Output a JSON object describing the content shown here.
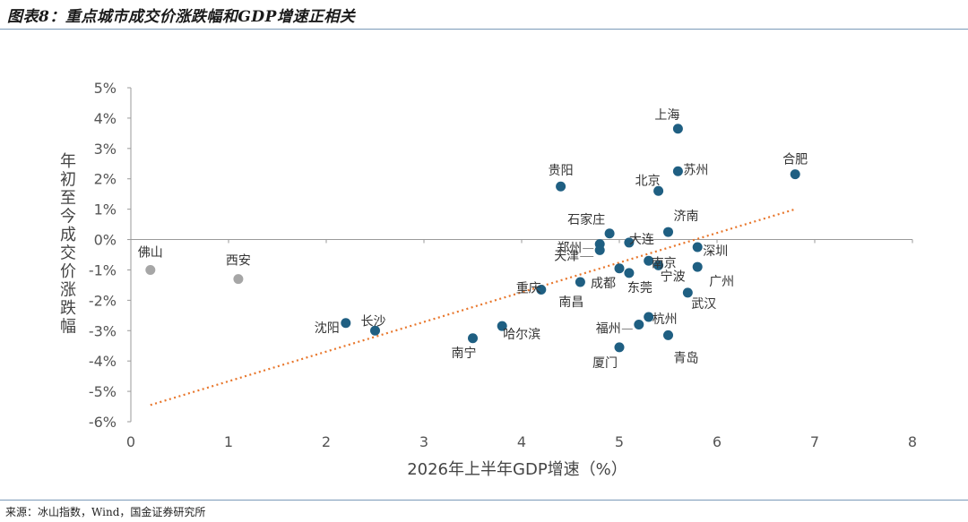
{
  "header": {
    "title": "图表8：重点城市成交价涨跌幅和GDP增速正相关"
  },
  "footer": {
    "source": "来源：冰山指数，Wind，国金证券研究所"
  },
  "chart_data": {
    "type": "scatter",
    "xlabel": "2026年上半年GDP增速（%）",
    "ylabel": "年初至今成交价涨跌幅",
    "xlim": [
      0,
      8
    ],
    "ylim": [
      -6,
      5
    ],
    "x_ticks": [
      "0",
      "1",
      "2",
      "3",
      "4",
      "5",
      "6",
      "7",
      "8"
    ],
    "y_ticks": [
      "-6%",
      "-5%",
      "-4%",
      "-3%",
      "-2%",
      "-1%",
      "0%",
      "1%",
      "2%",
      "3%",
      "4%",
      "5%"
    ],
    "colors": {
      "main": "#1f5f82",
      "grey": "#a6a6a6",
      "trend": "#e8762b"
    },
    "points": [
      {
        "name": "上海",
        "x": 5.6,
        "y": 3.65,
        "color": "main"
      },
      {
        "name": "合肥",
        "x": 6.8,
        "y": 2.15,
        "color": "main"
      },
      {
        "name": "苏州",
        "x": 5.6,
        "y": 2.25,
        "color": "main"
      },
      {
        "name": "北京",
        "x": 5.4,
        "y": 1.6,
        "color": "main"
      },
      {
        "name": "贵阳",
        "x": 4.4,
        "y": 1.75,
        "color": "main"
      },
      {
        "name": "济南",
        "x": 5.5,
        "y": 0.25,
        "color": "main"
      },
      {
        "name": "石家庄",
        "x": 4.9,
        "y": 0.2,
        "color": "main"
      },
      {
        "name": "大连",
        "x": 5.1,
        "y": -0.1,
        "color": "main"
      },
      {
        "name": "郑州",
        "x": 4.8,
        "y": -0.15,
        "color": "main"
      },
      {
        "name": "天津",
        "x": 4.8,
        "y": -0.35,
        "color": "main"
      },
      {
        "name": "深圳",
        "x": 5.8,
        "y": -0.25,
        "color": "main"
      },
      {
        "name": "南京",
        "x": 5.3,
        "y": -0.7,
        "color": "main"
      },
      {
        "name": "宁波",
        "x": 5.4,
        "y": -0.85,
        "color": "main"
      },
      {
        "name": "广州",
        "x": 5.8,
        "y": -0.9,
        "color": "main"
      },
      {
        "name": "东莞",
        "x": 5.1,
        "y": -1.1,
        "color": "main"
      },
      {
        "name": "成都",
        "x": 5.0,
        "y": -0.95,
        "color": "main"
      },
      {
        "name": "南昌",
        "x": 4.6,
        "y": -1.4,
        "color": "main"
      },
      {
        "name": "重庆",
        "x": 4.2,
        "y": -1.65,
        "color": "main"
      },
      {
        "name": "武汉",
        "x": 5.7,
        "y": -1.75,
        "color": "main"
      },
      {
        "name": "杭州",
        "x": 5.3,
        "y": -2.55,
        "color": "main"
      },
      {
        "name": "福州",
        "x": 5.2,
        "y": -2.8,
        "color": "main"
      },
      {
        "name": "青岛",
        "x": 5.5,
        "y": -3.15,
        "color": "main"
      },
      {
        "name": "厦门",
        "x": 5.0,
        "y": -3.55,
        "color": "main"
      },
      {
        "name": "哈尔滨",
        "x": 3.8,
        "y": -2.85,
        "color": "main"
      },
      {
        "name": "南宁",
        "x": 3.5,
        "y": -3.25,
        "color": "main"
      },
      {
        "name": "沈阳",
        "x": 2.2,
        "y": -2.75,
        "color": "main"
      },
      {
        "name": "长沙",
        "x": 2.5,
        "y": -3.0,
        "color": "main"
      },
      {
        "name": "佛山",
        "x": 0.2,
        "y": -1.0,
        "color": "grey"
      },
      {
        "name": "西安",
        "x": 1.1,
        "y": -1.3,
        "color": "grey"
      }
    ],
    "trendline": {
      "x": [
        0.2,
        6.8
      ],
      "y": [
        -5.45,
        1.0
      ]
    }
  }
}
